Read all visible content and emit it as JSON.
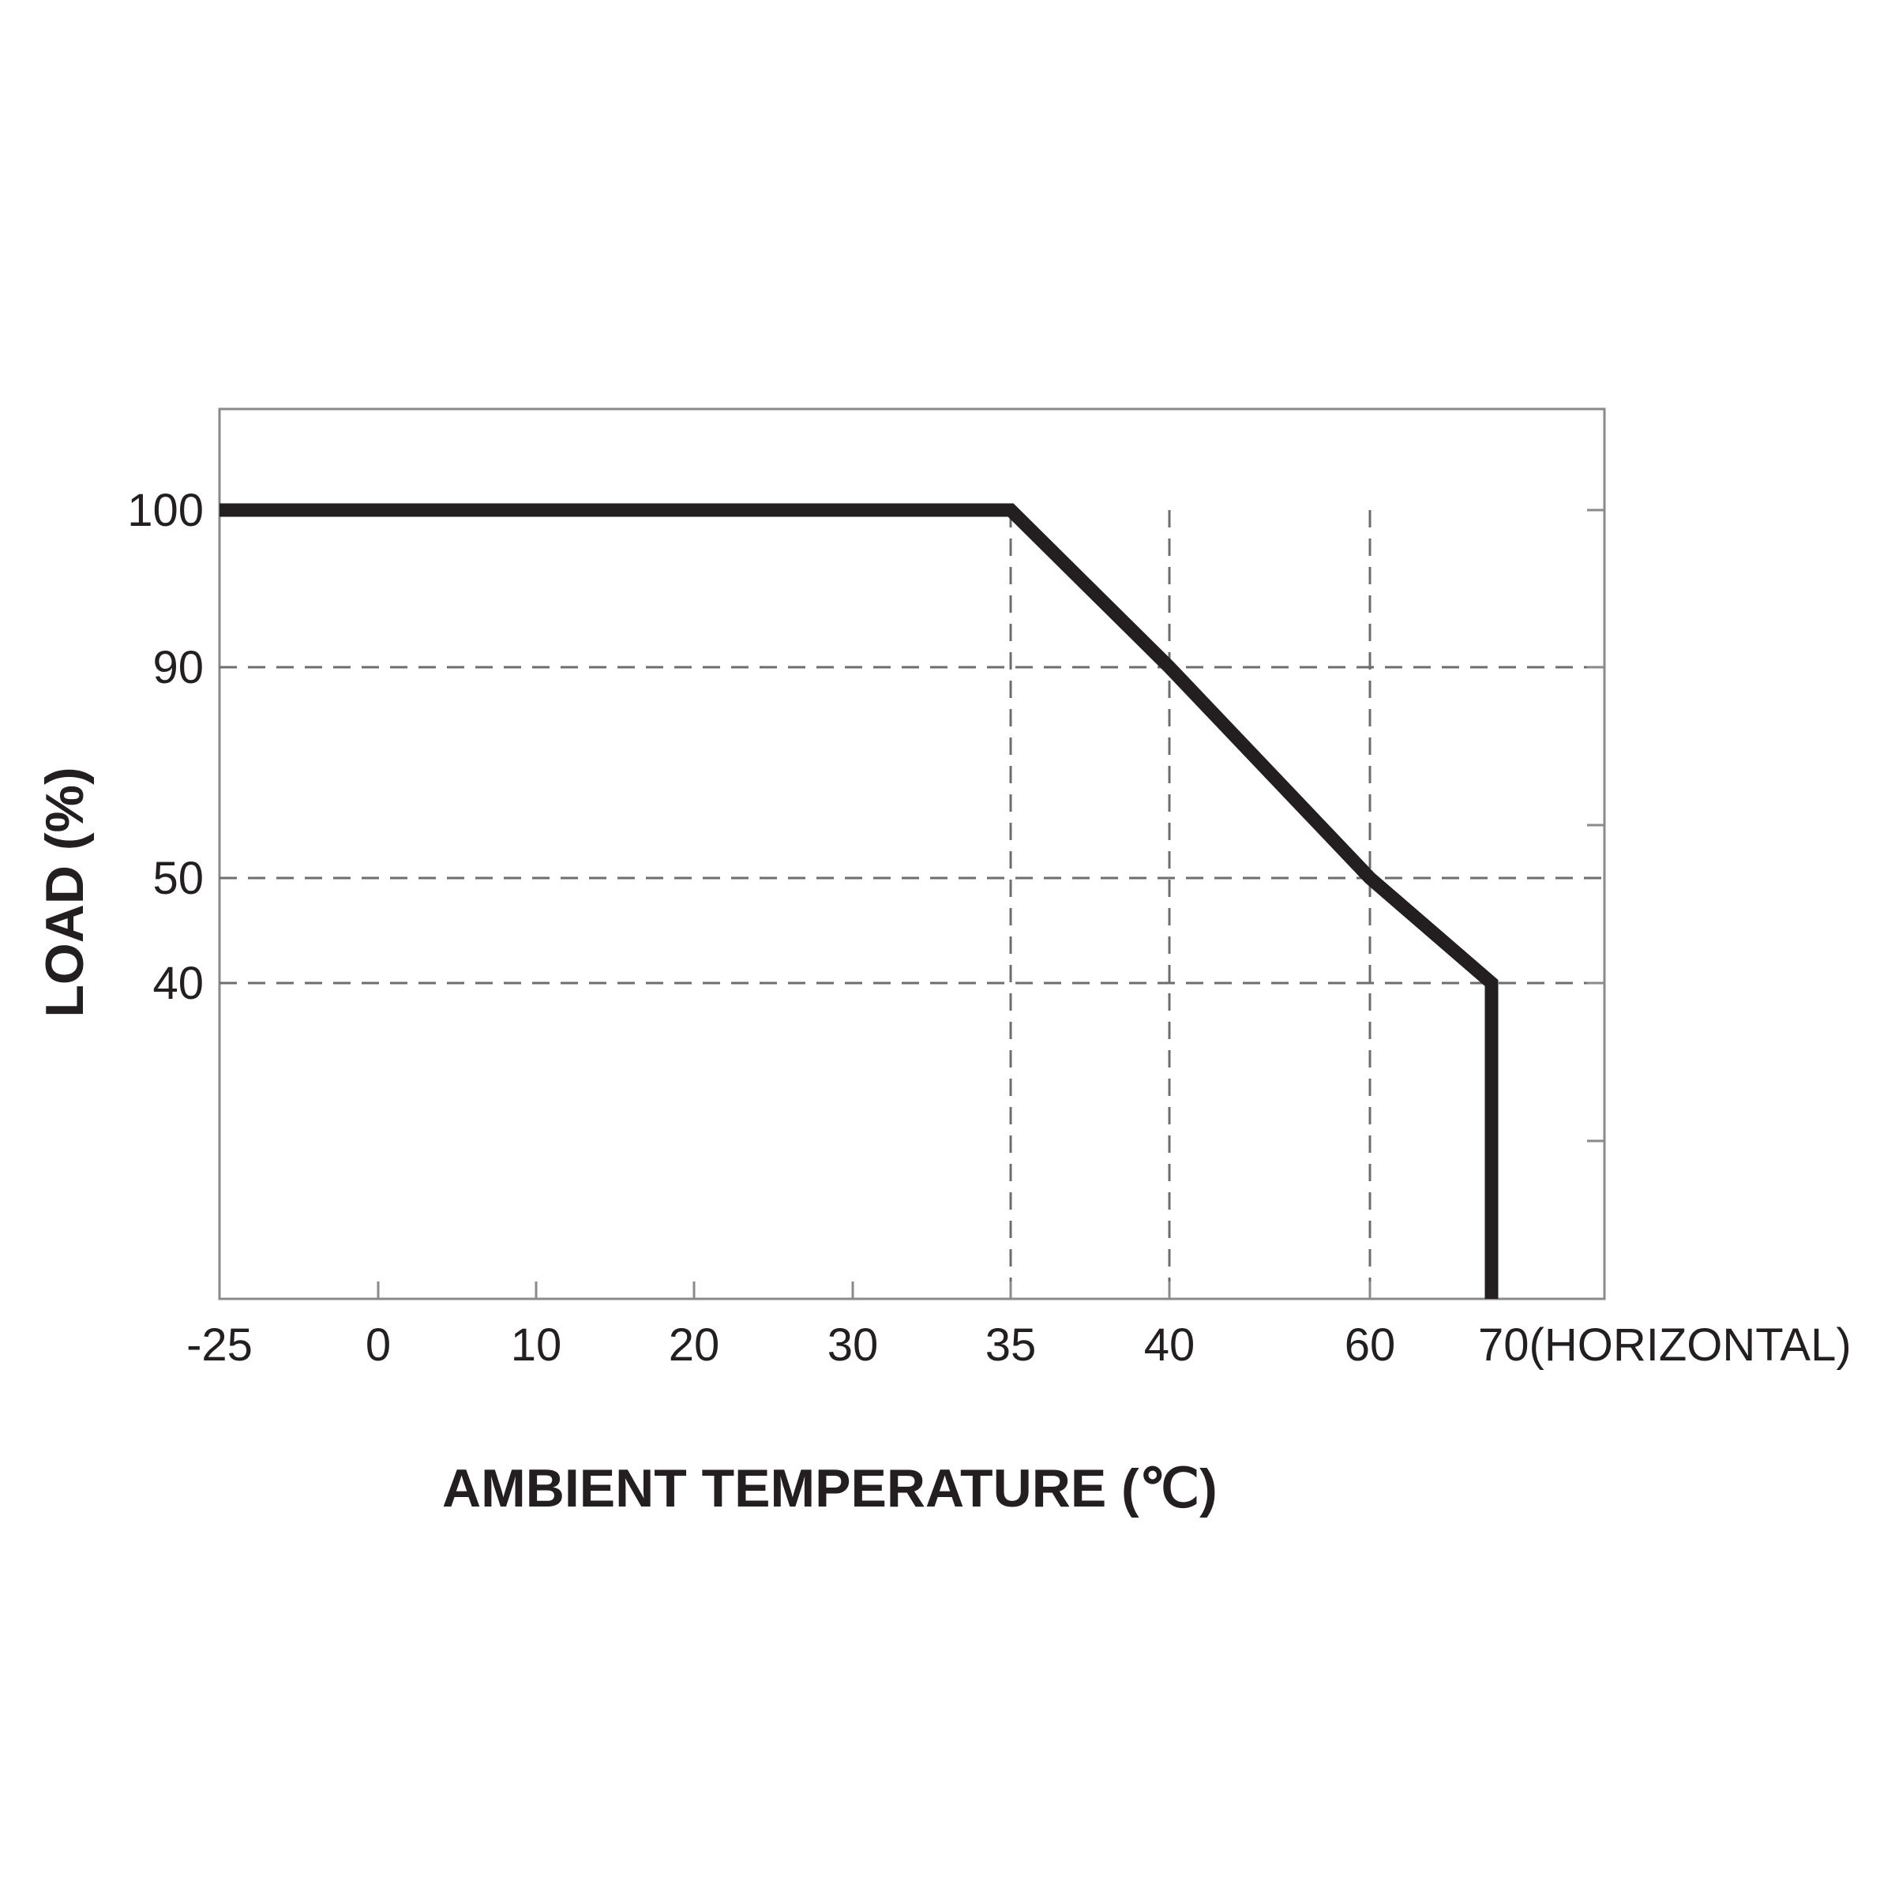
{
  "chart_data": {
    "type": "line",
    "title": "",
    "xlabel": "AMBIENT TEMPERATURE (℃)",
    "ylabel": "LOAD (%)",
    "x_ticks": [
      "-25",
      "0",
      "10",
      "20",
      "30",
      "35",
      "40",
      "60",
      "70(HORIZONTAL)"
    ],
    "y_ticks": [
      "100",
      "90",
      "50",
      "40"
    ],
    "series": [
      {
        "points": [
          {
            "x": "-25",
            "y": 100
          },
          {
            "x": "35",
            "y": 100
          },
          {
            "x": "40",
            "y": 90
          },
          {
            "x": "60",
            "y": 50
          },
          {
            "x": "70",
            "y": 40
          },
          {
            "x": "70",
            "y": 0
          }
        ]
      }
    ],
    "reference_lines": {
      "vertical_at_x": [
        "35",
        "40",
        "60"
      ],
      "horizontal_at_y": [
        90,
        50,
        40
      ]
    },
    "grid": false,
    "colors": {
      "line": "#231f20",
      "frame": "#8a8a8a",
      "dashed": "#6d6d6d",
      "text": "#231f20"
    }
  }
}
